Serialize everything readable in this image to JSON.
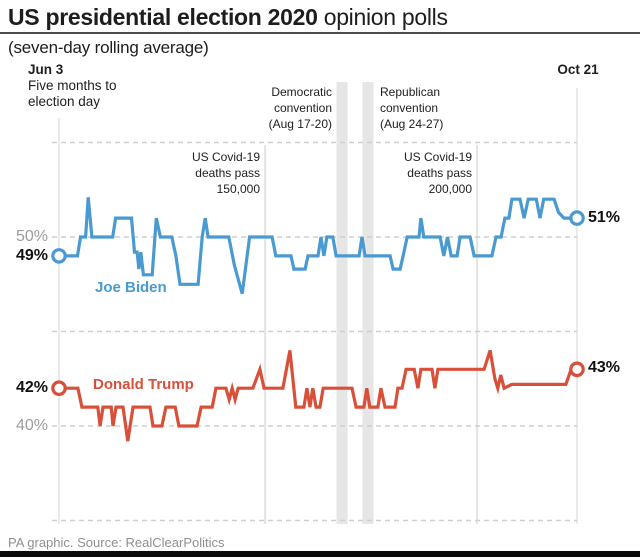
{
  "header": {
    "title_bold": "US presidential election 2020",
    "title_rest": " opinion polls",
    "subtitle": "(seven-day rolling average)"
  },
  "axis": {
    "start_date": "Jun 3",
    "start_note_line1": "Five months to",
    "start_note_line2": "election day",
    "end_date": "Oct 21"
  },
  "value_labels": {
    "biden_gridline": "50%",
    "biden_start": "49%",
    "biden_end": "51%",
    "trump_start": "42%",
    "trump_gridline": "40%",
    "trump_end": "43%"
  },
  "series_labels": {
    "biden": "Joe Biden",
    "trump": "Donald Trump"
  },
  "annotations": {
    "covid150": {
      "lines": [
        "US Covid-19",
        "deaths pass",
        "150,000"
      ]
    },
    "covid200": {
      "lines": [
        "US Covid-19",
        "deaths pass",
        "200,000"
      ]
    },
    "dem_convention": {
      "lines": [
        "Democratic",
        "convention",
        "(Aug 17-20)"
      ]
    },
    "rep_convention": {
      "lines": [
        "Republican",
        "convention",
        "(Aug 24-27)"
      ]
    }
  },
  "footer": {
    "source": "PA graphic. Source: RealClearPolitics"
  },
  "colors": {
    "biden": "#4A9AD2",
    "trump": "#D9503A",
    "grid": "#CFCFCF",
    "axis_line": "#DBDBDB",
    "event_band": "#E6E6E6",
    "event_line": "#E3E3E3",
    "gray_label": "#9C9C9C",
    "text": "#1D1D1B"
  },
  "chart_data": {
    "type": "line",
    "title": "US presidential election 2020 opinion polls",
    "subtitle": "(seven-day rolling average)",
    "x_axis": {
      "start_label": "Jun 3",
      "end_label": "Oct 21",
      "days": 140
    },
    "y_axis": {
      "unit": "%",
      "gridlines": [
        35,
        40,
        45,
        50,
        55
      ],
      "labeled_gridlines": [
        40,
        50
      ],
      "ylim": [
        34,
        56
      ]
    },
    "series": [
      {
        "name": "Joe Biden",
        "color_key": "biden",
        "start_value": 49,
        "end_value": 51,
        "points": [
          [
            0,
            49
          ],
          [
            5,
            49
          ],
          [
            5.8,
            50
          ],
          [
            7.2,
            50
          ],
          [
            7.9,
            52.1
          ],
          [
            8.9,
            50
          ],
          [
            14.5,
            50
          ],
          [
            15.3,
            51
          ],
          [
            19.6,
            51
          ],
          [
            20.4,
            49.2
          ],
          [
            21.1,
            49.2
          ],
          [
            21.6,
            48.3
          ],
          [
            22.1,
            49.2
          ],
          [
            22.8,
            48
          ],
          [
            25.2,
            48
          ],
          [
            26.3,
            51
          ],
          [
            27.4,
            50
          ],
          [
            30.5,
            50
          ],
          [
            31.6,
            49
          ],
          [
            32.7,
            47.5
          ],
          [
            37.6,
            47.5
          ],
          [
            38.7,
            50
          ],
          [
            39.5,
            51
          ],
          [
            40.3,
            50
          ],
          [
            45.9,
            50
          ],
          [
            47.4,
            48.5
          ],
          [
            49.5,
            47
          ],
          [
            51.5,
            50
          ],
          [
            57.6,
            50
          ],
          [
            58.6,
            49
          ],
          [
            62.7,
            49
          ],
          [
            63.5,
            48.3
          ],
          [
            66.5,
            48.3
          ],
          [
            67.3,
            49
          ],
          [
            70,
            49
          ],
          [
            70.8,
            50
          ],
          [
            71.6,
            49
          ],
          [
            72.4,
            50
          ],
          [
            74,
            50
          ],
          [
            74.9,
            49
          ],
          [
            81.1,
            49
          ],
          [
            81.9,
            50
          ],
          [
            82.7,
            49
          ],
          [
            89.5,
            49
          ],
          [
            90.3,
            48.3
          ],
          [
            92.2,
            48.3
          ],
          [
            93,
            49
          ],
          [
            94.1,
            50
          ],
          [
            97.3,
            50
          ],
          [
            97.8,
            51
          ],
          [
            98.6,
            50
          ],
          [
            103,
            50
          ],
          [
            104,
            49
          ],
          [
            105,
            50
          ],
          [
            106,
            49
          ],
          [
            107.6,
            49
          ],
          [
            108.4,
            50
          ],
          [
            111.1,
            50
          ],
          [
            112.2,
            49
          ],
          [
            117,
            49
          ],
          [
            118.1,
            50
          ],
          [
            119.5,
            50
          ],
          [
            120.5,
            51
          ],
          [
            121.6,
            51
          ],
          [
            122.4,
            52
          ],
          [
            124.6,
            52
          ],
          [
            125.7,
            51
          ],
          [
            126.8,
            52
          ],
          [
            129,
            52
          ],
          [
            130,
            51
          ],
          [
            131,
            52
          ],
          [
            133.8,
            52
          ],
          [
            135,
            51.3
          ],
          [
            136.5,
            51
          ],
          [
            140,
            51
          ]
        ]
      },
      {
        "name": "Donald Trump",
        "color_key": "trump",
        "start_value": 42,
        "end_value": 43,
        "points": [
          [
            0,
            42
          ],
          [
            5.1,
            42
          ],
          [
            6.2,
            41
          ],
          [
            10.5,
            41
          ],
          [
            11.1,
            40
          ],
          [
            11.9,
            41
          ],
          [
            14.1,
            41
          ],
          [
            14.6,
            40
          ],
          [
            15.4,
            41
          ],
          [
            17.3,
            41
          ],
          [
            18.6,
            39.2
          ],
          [
            20,
            41
          ],
          [
            24.6,
            41
          ],
          [
            25.4,
            40
          ],
          [
            27.8,
            40
          ],
          [
            28.9,
            41
          ],
          [
            31.4,
            41
          ],
          [
            32.4,
            40
          ],
          [
            37.3,
            40
          ],
          [
            38.4,
            41
          ],
          [
            41.4,
            41
          ],
          [
            42.4,
            42
          ],
          [
            45.1,
            42
          ],
          [
            46,
            41.4
          ],
          [
            46.8,
            42
          ],
          [
            47.6,
            41.4
          ],
          [
            48.4,
            42
          ],
          [
            52.4,
            42
          ],
          [
            54.3,
            43
          ],
          [
            55.4,
            42
          ],
          [
            60.5,
            42
          ],
          [
            62.4,
            44
          ],
          [
            64,
            41
          ],
          [
            66.2,
            41
          ],
          [
            67,
            42
          ],
          [
            67.8,
            41
          ],
          [
            68.6,
            42
          ],
          [
            69.5,
            41
          ],
          [
            70.5,
            41
          ],
          [
            71.4,
            42
          ],
          [
            79.2,
            42
          ],
          [
            80.3,
            41
          ],
          [
            82.4,
            41
          ],
          [
            83.2,
            42
          ],
          [
            84,
            41
          ],
          [
            86.2,
            41
          ],
          [
            87,
            42
          ],
          [
            88.1,
            41
          ],
          [
            90.8,
            41
          ],
          [
            91.6,
            42
          ],
          [
            92.7,
            42
          ],
          [
            93.8,
            43
          ],
          [
            96,
            43
          ],
          [
            97,
            42
          ],
          [
            97.8,
            43
          ],
          [
            100.8,
            43
          ],
          [
            101.6,
            42
          ],
          [
            102.4,
            43
          ],
          [
            114.9,
            43
          ],
          [
            116.5,
            44
          ],
          [
            117.8,
            42.5
          ],
          [
            118.6,
            42
          ],
          [
            119.4,
            42.7
          ],
          [
            120.3,
            42
          ],
          [
            122.4,
            42.2
          ],
          [
            137,
            42.2
          ],
          [
            138.4,
            43
          ],
          [
            140,
            43
          ]
        ]
      }
    ],
    "events": [
      {
        "name": "Democratic convention (Aug 17-20)",
        "kind": "band",
        "start_day": 75,
        "end_day": 78
      },
      {
        "name": "Republican convention (Aug 24-27)",
        "kind": "band",
        "start_day": 82,
        "end_day": 85
      },
      {
        "name": "US Covid-19 deaths pass 150,000",
        "kind": "line",
        "day": 55.7
      },
      {
        "name": "US Covid-19 deaths pass 200,000",
        "kind": "line",
        "day": 113
      }
    ],
    "legend_position": "on-chart"
  }
}
